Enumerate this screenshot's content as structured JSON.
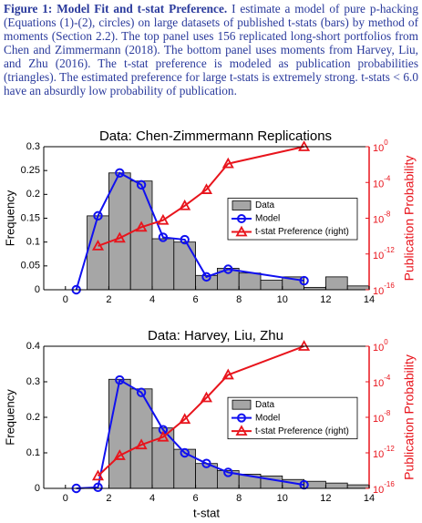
{
  "caption": {
    "label": "Figure 1: Model Fit and t-stat Preference.",
    "text": "I estimate a model of pure p-hacking (Equations (1)-(2), circles) on large datasets of published t-stats (bars) by method of moments (Section 2.2). The top panel uses 156 replicated long-short portfolios from Chen and Zimmermann (2018). The bottom panel uses moments from Harvey, Liu, and Zhu (2016). The t-stat preference is modeled as publication probabilities (triangles). The estimated preference for large t-stats is extremely strong. t-stats < 6.0 have an absurdly low probability of publication."
  },
  "chart_data": [
    {
      "type": "combo",
      "title": "Data: Chen-Zimmermann Replications",
      "ylabel": "Frequency",
      "y2label": "Publication Probability",
      "xlim": [
        -1,
        14
      ],
      "xticks": [
        0,
        2,
        4,
        6,
        8,
        10,
        12,
        14
      ],
      "ylim": [
        0,
        0.3
      ],
      "yticks": [
        0,
        0.05,
        0.1,
        0.15,
        0.2,
        0.25,
        0.3
      ],
      "y2lim": [
        1e-16,
        1
      ],
      "y2scale": "log",
      "y2ticks": [
        {
          "value": 1,
          "label": "10",
          "sup": "0"
        },
        {
          "value": 0.0001,
          "label": "10",
          "sup": "-4"
        },
        {
          "value": 1e-08,
          "label": "10",
          "sup": "-8"
        },
        {
          "value": 1e-12,
          "label": "10",
          "sup": "-12"
        },
        {
          "value": 1e-16,
          "label": "10",
          "sup": "-16"
        }
      ],
      "y2color": "#e8141c",
      "legend": "right",
      "histogram": {
        "name": "Data",
        "color": "#a6a6a6",
        "bins": [
          1,
          2,
          3,
          4,
          5,
          6,
          7,
          8,
          9,
          10,
          11,
          12,
          13,
          14
        ],
        "values": [
          0.155,
          0.245,
          0.228,
          0.107,
          0.1,
          0.03,
          0.045,
          0.035,
          0.02,
          0.027,
          0.005,
          0.027,
          0.008
        ]
      },
      "series": [
        {
          "name": "Model",
          "color": "#1010f0",
          "marker": "circle",
          "x": [
            0.5,
            1.5,
            2.5,
            3.5,
            4.5,
            5.5,
            6.5,
            7.5,
            11
          ],
          "values": [
            0,
            0.155,
            0.245,
            0.22,
            0.11,
            0.105,
            0.027,
            0.043,
            0.019
          ]
        },
        {
          "name": "t-stat Preference (right)",
          "color": "#e8141c",
          "marker": "triangle",
          "axis": "y2",
          "x": [
            1.5,
            2.5,
            3.5,
            4.5,
            5.5,
            6.5,
            7.5,
            11
          ],
          "values": [
            8e-12,
            6e-11,
            1e-09,
            6e-09,
            2.5e-07,
            1.6e-05,
            0.0126,
            1
          ]
        }
      ]
    },
    {
      "type": "combo",
      "title": "Data: Harvey, Liu, Zhu",
      "xlabel": "t-stat",
      "ylabel": "Frequency",
      "y2label": "Publication Probability",
      "xlim": [
        -1,
        14
      ],
      "xticks": [
        0,
        2,
        4,
        6,
        8,
        10,
        12,
        14
      ],
      "ylim": [
        0,
        0.4
      ],
      "yticks": [
        0,
        0.1,
        0.2,
        0.3,
        0.4
      ],
      "y2lim": [
        1e-16,
        1
      ],
      "y2scale": "log",
      "y2ticks": [
        {
          "value": 1,
          "label": "10",
          "sup": "0"
        },
        {
          "value": 0.0001,
          "label": "10",
          "sup": "-4"
        },
        {
          "value": 1e-08,
          "label": "10",
          "sup": "-8"
        },
        {
          "value": 1e-12,
          "label": "10",
          "sup": "-12"
        },
        {
          "value": 1e-16,
          "label": "10",
          "sup": "-16"
        }
      ],
      "y2color": "#e8141c",
      "legend": "right",
      "histogram": {
        "name": "Data",
        "color": "#a6a6a6",
        "bins": [
          2,
          3,
          4,
          5,
          6,
          7,
          8,
          9,
          10,
          11,
          12,
          13,
          14
        ],
        "values": [
          0.307,
          0.28,
          0.17,
          0.11,
          0.07,
          0.05,
          0.04,
          0.035,
          0.025,
          0.02,
          0.015,
          0.01
        ]
      },
      "series": [
        {
          "name": "Model",
          "color": "#1010f0",
          "marker": "circle",
          "x": [
            0.5,
            1.5,
            2.5,
            3.5,
            4.5,
            5.5,
            6.5,
            7.5,
            11
          ],
          "values": [
            0,
            0.003,
            0.305,
            0.27,
            0.165,
            0.1,
            0.07,
            0.045,
            0.01
          ]
        },
        {
          "name": "t-stat Preference (right)",
          "color": "#e8141c",
          "marker": "triangle",
          "axis": "y2",
          "x": [
            1.5,
            2.5,
            3.5,
            4.5,
            5.5,
            6.5,
            7.5,
            11
          ],
          "values": [
            2.5e-15,
            5e-13,
            8e-12,
            6e-11,
            6e-09,
            1.6e-06,
            0.0006,
            1
          ]
        }
      ]
    }
  ]
}
